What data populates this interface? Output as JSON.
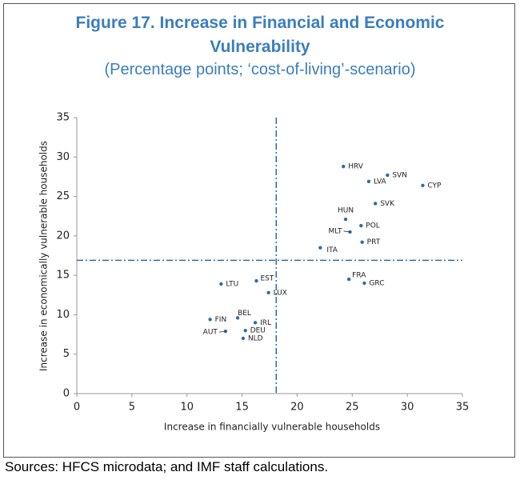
{
  "chart_data": {
    "type": "scatter",
    "title": "Figure 17. Increase in Financial and Economic Vulnerability",
    "subtitle": "(Percentage points; ‘cost-of-living’-scenario)",
    "x_label": "Increase in financially vulnerable households",
    "y_label": "Increase in economically vulnerable households",
    "source": "Sources: HFCS microdata; and IMF staff calculations.",
    "labels": [
      "HRV",
      "SVN",
      "LVA",
      "CYP",
      "SVK",
      "HUN",
      "POL",
      "MLT",
      "PRT",
      "ITA",
      "FRA",
      "GRC",
      "LTU",
      "EST",
      "LUX",
      "BEL",
      "FIN",
      "IRL",
      "DEU",
      "AUT",
      "NLD"
    ],
    "x": [
      24.2,
      28.2,
      26.5,
      31.4,
      27.1,
      24.4,
      25.8,
      24.8,
      25.9,
      22.1,
      24.7,
      26.1,
      13.1,
      16.3,
      17.4,
      14.6,
      12.1,
      16.2,
      15.3,
      13.5,
      15.1
    ],
    "values": [
      28.8,
      27.7,
      26.9,
      26.4,
      24.1,
      22.1,
      21.3,
      20.5,
      19.2,
      18.5,
      14.5,
      14.0,
      13.9,
      14.3,
      12.8,
      9.6,
      9.4,
      9.0,
      8.0,
      7.9,
      7.0
    ],
    "color": "#2e6da4",
    "vline": 18.1,
    "hline": 16.9,
    "line_color": "#2e6da4",
    "xlim": [
      0,
      35
    ],
    "ylim": [
      0,
      35
    ],
    "xticks": [
      0,
      5,
      10,
      15,
      20,
      25,
      30,
      35
    ],
    "yticks": [
      0,
      5,
      10,
      15,
      20,
      25,
      30,
      35
    ],
    "grid": false
  }
}
